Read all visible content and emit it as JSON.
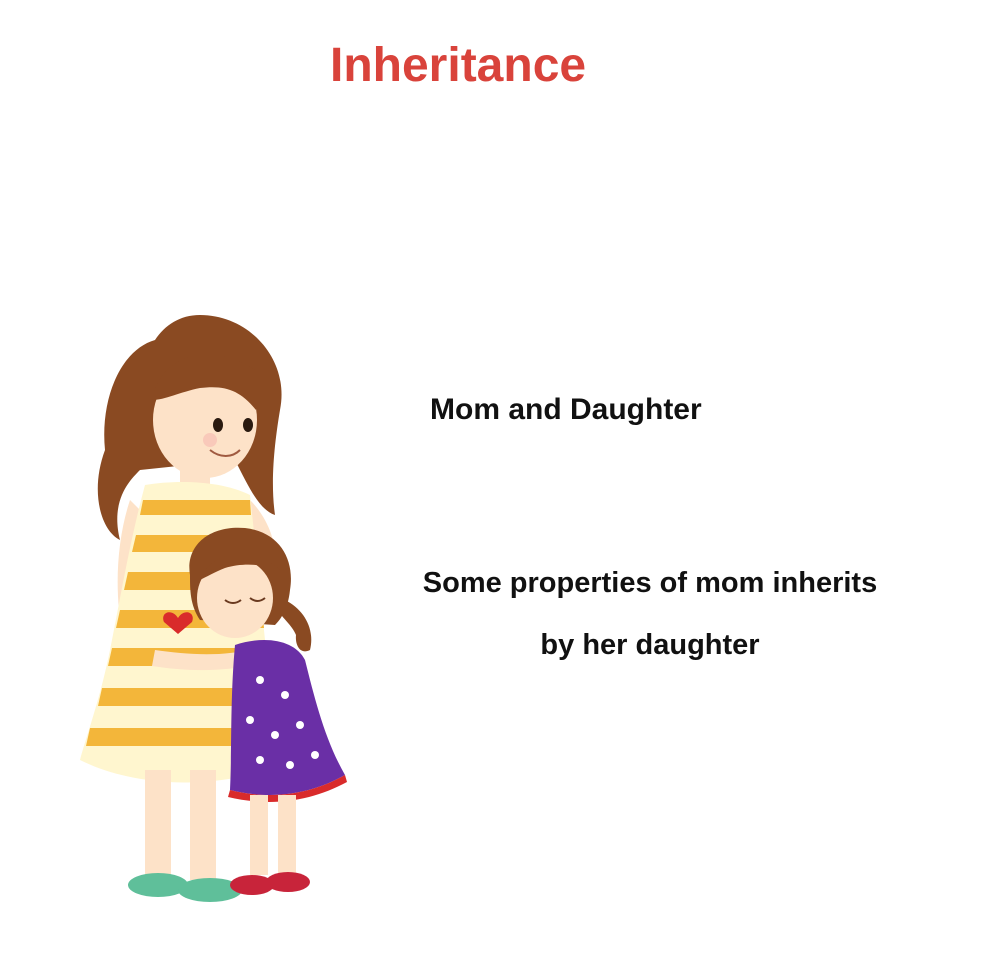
{
  "slide": {
    "title": "Inheritance",
    "subtitle": "Mom and Daughter",
    "description_lines": [
      "Some properties of mom inherits",
      "by her daughter"
    ]
  },
  "colors": {
    "title": "#d9433b",
    "text": "#111111",
    "background": "#ffffff",
    "mom_dress_stripe": "#f3b63a",
    "mom_dress_base": "#fff6cf",
    "daughter_dress": "#6a2fa6",
    "hair": "#8a4a22",
    "skin": "#fde2c8"
  },
  "illustration": {
    "icon": "mom-and-daughter-illustration"
  }
}
